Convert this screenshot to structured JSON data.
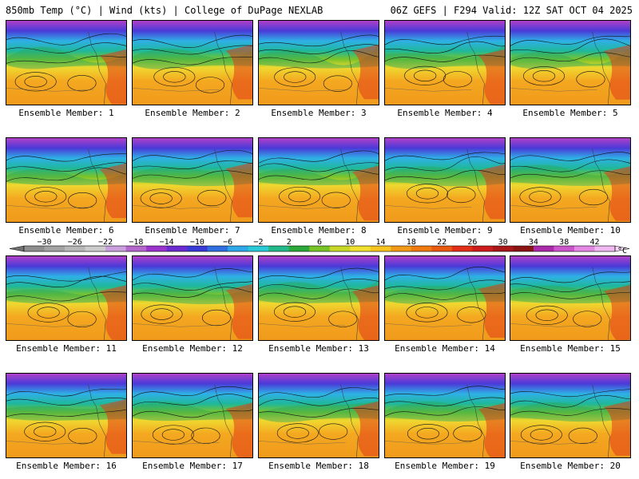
{
  "header": {
    "left_title": "850mb Temp (°C) | Wind (kts) | College of DuPage NEXLAB",
    "right_title": "06Z GEFS | F294 Valid: 12Z SAT OCT 04 2025"
  },
  "caption_prefix": "Ensemble Member: ",
  "members": [
    {
      "label": "Ensemble Member: 1"
    },
    {
      "label": "Ensemble Member: 2"
    },
    {
      "label": "Ensemble Member: 3"
    },
    {
      "label": "Ensemble Member: 4"
    },
    {
      "label": "Ensemble Member: 5"
    },
    {
      "label": "Ensemble Member: 6"
    },
    {
      "label": "Ensemble Member: 7"
    },
    {
      "label": "Ensemble Member: 8"
    },
    {
      "label": "Ensemble Member: 9"
    },
    {
      "label": "Ensemble Member: 10"
    },
    {
      "label": "Ensemble Member: 11"
    },
    {
      "label": "Ensemble Member: 12"
    },
    {
      "label": "Ensemble Member: 13"
    },
    {
      "label": "Ensemble Member: 14"
    },
    {
      "label": "Ensemble Member: 15"
    },
    {
      "label": "Ensemble Member: 16"
    },
    {
      "label": "Ensemble Member: 17"
    },
    {
      "label": "Ensemble Member: 18"
    },
    {
      "label": "Ensemble Member: 19"
    },
    {
      "label": "Ensemble Member: 20"
    }
  ],
  "colorbar": {
    "unit": "°C",
    "ticks": [
      -30,
      -26,
      -22,
      -18,
      -14,
      -10,
      -6,
      -2,
      2,
      6,
      10,
      14,
      18,
      22,
      26,
      30,
      34,
      38,
      42
    ],
    "colors": [
      "#8e8e8e",
      "#a3a3a3",
      "#b8b8b8",
      "#cccccc",
      "#c9a0dc",
      "#b366cc",
      "#9933cc",
      "#6a2bd1",
      "#3a3ad6",
      "#2f6fe0",
      "#2ea8e8",
      "#29c9d6",
      "#22b88a",
      "#2aa83a",
      "#78c428",
      "#c8d828",
      "#f0e030",
      "#f6c420",
      "#f29a18",
      "#ee7a10",
      "#e85a10",
      "#e23018",
      "#cc1c1c",
      "#a81818",
      "#8a1414",
      "#aa2aaa",
      "#cc55cc",
      "#e488e4",
      "#f0b8f0"
    ]
  }
}
